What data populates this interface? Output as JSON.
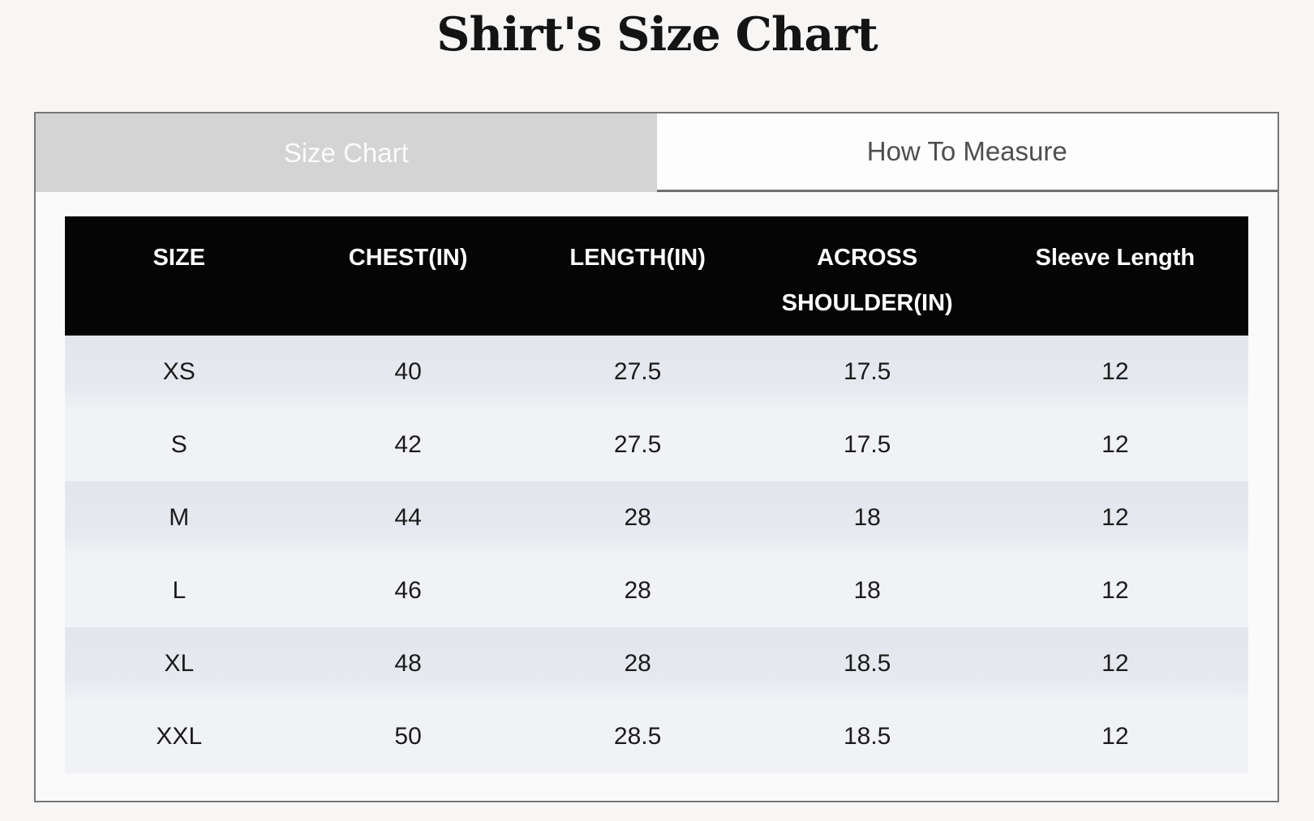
{
  "page": {
    "title": "Shirt's Size Chart"
  },
  "tabs": [
    {
      "label": "Size Chart",
      "active": true
    },
    {
      "label": "How To Measure",
      "active": false
    }
  ],
  "size_table": {
    "columns": [
      "SIZE",
      "CHEST(IN)",
      "LENGTH(IN)",
      "ACROSS SHOULDER(IN)",
      "Sleeve Length"
    ],
    "rows": [
      [
        "XS",
        "40",
        "27.5",
        "17.5",
        "12"
      ],
      [
        "S",
        "42",
        "27.5",
        "17.5",
        "12"
      ],
      [
        "M",
        "44",
        "28",
        "18",
        "12"
      ],
      [
        "L",
        "46",
        "28",
        "18",
        "12"
      ],
      [
        "XL",
        "48",
        "28",
        "18.5",
        "12"
      ],
      [
        "XXL",
        "50",
        "28.5",
        "18.5",
        "12"
      ]
    ]
  },
  "colors": {
    "page_background": "#f7f6f5",
    "panel_border": "#767676",
    "active_tab_background": "#d4d4d4",
    "active_tab_text": "#fbfbfb",
    "inactive_tab_background": "#fdfdfd",
    "inactive_tab_text": "#4e4e4e",
    "table_header_background": "#050505",
    "table_header_text": "#ffffff",
    "row_dark": "#e5e8ee",
    "row_light": "#f1f2f6"
  }
}
